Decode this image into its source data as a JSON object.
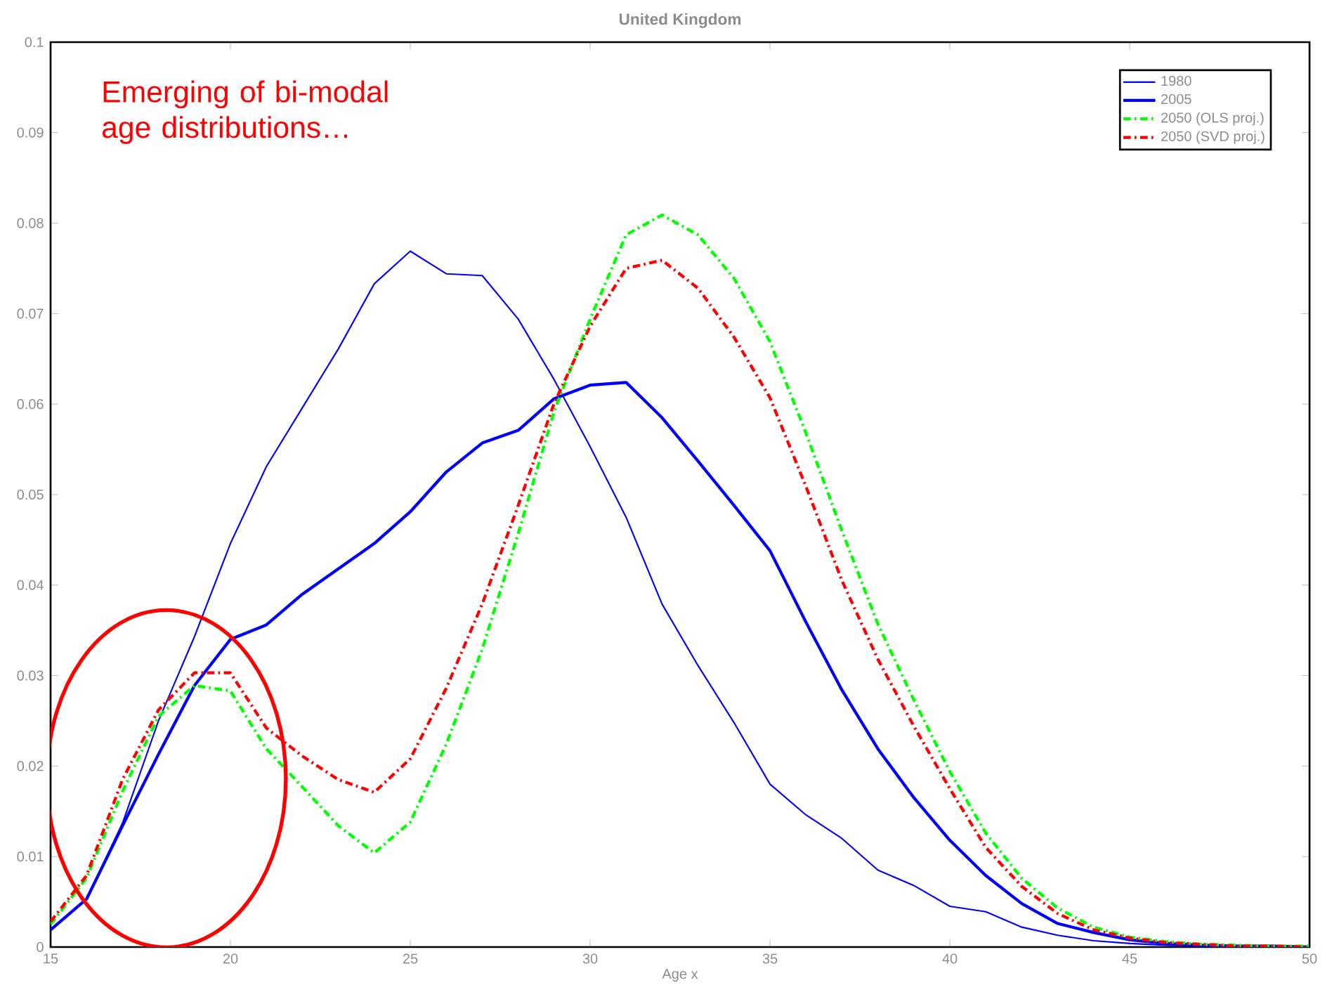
{
  "chart_data": {
    "type": "line",
    "title": "United Kingdom",
    "xlabel": "Age x",
    "x": [
      15,
      16,
      17,
      18,
      19,
      20,
      21,
      22,
      23,
      24,
      25,
      26,
      27,
      28,
      29,
      30,
      31,
      32,
      33,
      34,
      35,
      36,
      37,
      38,
      39,
      40,
      41,
      42,
      43,
      44,
      45,
      46,
      47,
      48,
      49,
      50
    ],
    "series": [
      {
        "name": "1980",
        "color": "#0000ff",
        "line_style": "solid",
        "values": [
          0.0019,
          0.0053,
          0.0137,
          0.025,
          0.0343,
          0.0446,
          0.0531,
          0.0596,
          0.0661,
          0.0733,
          0.0769,
          0.0744,
          0.0742,
          0.0694,
          0.0627,
          0.0553,
          0.0475,
          0.0379,
          0.0311,
          0.0248,
          0.018,
          0.0146,
          0.012,
          0.0085,
          0.0068,
          0.0045,
          0.0039,
          0.0022,
          0.0013,
          0.0007,
          0.0004,
          0.0002,
          0.0001,
          0.0001,
          0,
          0
        ]
      },
      {
        "name": "2005",
        "color": "#0000ff",
        "line_style": "solid",
        "values": [
          0.0019,
          0.0053,
          0.0134,
          0.0213,
          0.0289,
          0.034,
          0.0356,
          0.039,
          0.0418,
          0.0446,
          0.0481,
          0.0525,
          0.0557,
          0.0571,
          0.0606,
          0.0621,
          0.0624,
          0.0585,
          0.0537,
          0.0488,
          0.0438,
          0.0359,
          0.0284,
          0.0219,
          0.0165,
          0.0118,
          0.0079,
          0.0048,
          0.0026,
          0.0016,
          0.0008,
          0.0004,
          0.0002,
          0.0001,
          0.0001,
          0
        ]
      },
      {
        "name": "2050 (OLS proj.)",
        "color": "#00ff00",
        "line_style": "dashdot",
        "values": [
          0.0025,
          0.0076,
          0.0172,
          0.0255,
          0.0289,
          0.0283,
          0.0219,
          0.0177,
          0.0134,
          0.0104,
          0.0138,
          0.0224,
          0.0329,
          0.0457,
          0.0592,
          0.0694,
          0.0787,
          0.0809,
          0.0787,
          0.0739,
          0.0669,
          0.0568,
          0.046,
          0.0357,
          0.0273,
          0.0194,
          0.0126,
          0.0076,
          0.0043,
          0.0022,
          0.0011,
          0.0006,
          0.0003,
          0.0002,
          0.0001,
          0.0001
        ]
      },
      {
        "name": "2050 (SVD proj.)",
        "color": "#ff0000",
        "line_style": "dashdot",
        "values": [
          0.0028,
          0.0079,
          0.0185,
          0.0262,
          0.0303,
          0.0303,
          0.0242,
          0.0211,
          0.0185,
          0.0171,
          0.0208,
          0.0286,
          0.0379,
          0.0488,
          0.0601,
          0.0686,
          0.075,
          0.0759,
          0.0728,
          0.0674,
          0.0607,
          0.0509,
          0.0405,
          0.0318,
          0.0244,
          0.0175,
          0.011,
          0.0067,
          0.0037,
          0.0019,
          0.001,
          0.0005,
          0.0003,
          0.0001,
          0.0001,
          0
        ]
      }
    ],
    "annotations": [
      "Emerging of bi-modal age distributions…"
    ],
    "xlim": [
      15,
      50
    ],
    "xticks": [
      15,
      20,
      25,
      30,
      35,
      40,
      45,
      50
    ],
    "ylim": [
      0,
      0.1
    ],
    "yticks": [
      0,
      0.01,
      0.02,
      0.03,
      0.04,
      0.05,
      0.06,
      0.07,
      0.08,
      0.09,
      0.1
    ],
    "grid": false,
    "legend": "top right",
    "marker": "none"
  }
}
